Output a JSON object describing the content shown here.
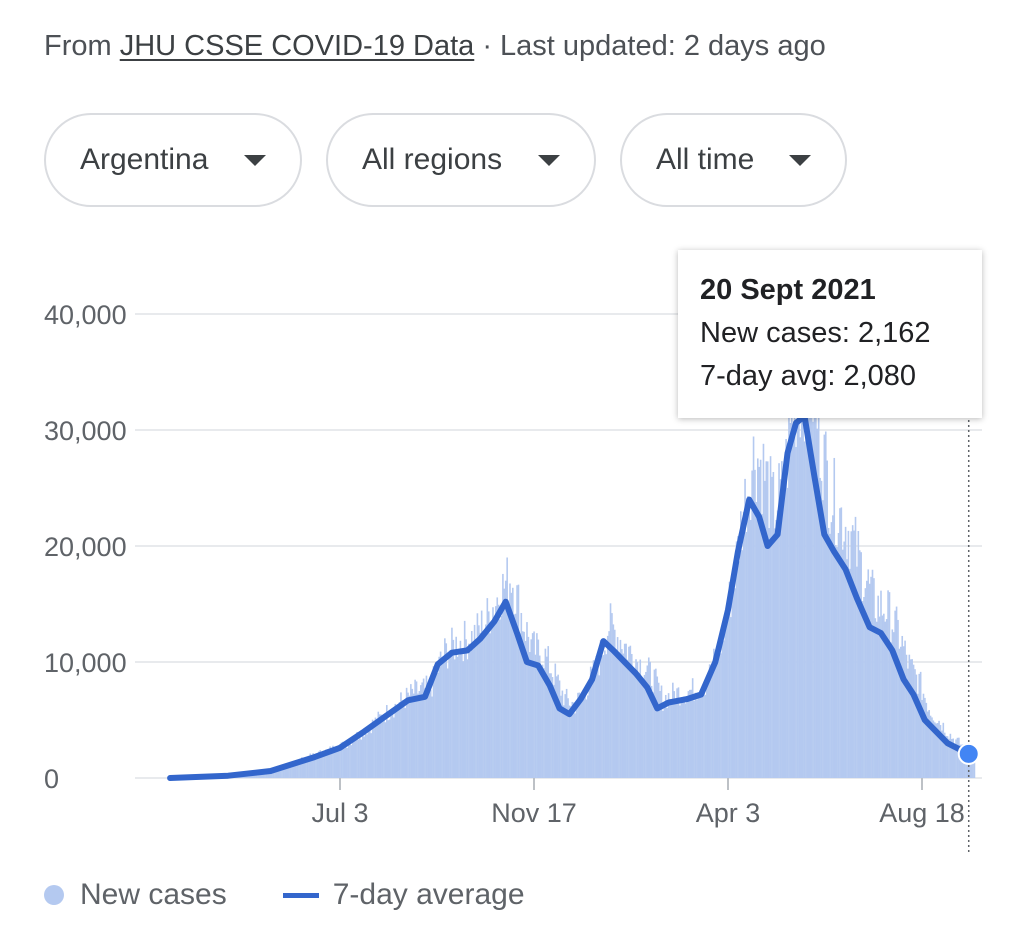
{
  "header": {
    "prefix": "From ",
    "source_link": "JHU CSSE COVID-19 Data",
    "updated": " · Last updated: 2 days ago"
  },
  "filters": {
    "country": "Argentina",
    "region": "All regions",
    "time": "All time"
  },
  "tooltip": {
    "date": "20 Sept 2021",
    "new_cases": "New cases: 2,162",
    "avg": "7-day avg: 2,080"
  },
  "legend": {
    "new_cases": "New cases",
    "avg": "7-day average"
  },
  "colors": {
    "bars": "#b4c9f0",
    "line": "#3366cc",
    "grid": "#e8eaed"
  },
  "chart_data": {
    "type": "area",
    "x_ticks": [
      "Jul 3",
      "Nov 17",
      "Apr 3",
      "Aug 18"
    ],
    "y_ticks": [
      "40,000",
      "30,000",
      "20,000",
      "10,000",
      "0"
    ],
    "ylim": [
      0,
      40000
    ],
    "series": [
      {
        "name": "7-day average",
        "points": [
          [
            "2020-03-05",
            0
          ],
          [
            "2020-04-15",
            200
          ],
          [
            "2020-05-15",
            600
          ],
          [
            "2020-06-15",
            1800
          ],
          [
            "2020-07-03",
            2600
          ],
          [
            "2020-07-20",
            4000
          ],
          [
            "2020-08-05",
            5400
          ],
          [
            "2020-08-20",
            6700
          ],
          [
            "2020-09-01",
            7000
          ],
          [
            "2020-09-10",
            9800
          ],
          [
            "2020-09-20",
            10800
          ],
          [
            "2020-10-01",
            11000
          ],
          [
            "2020-10-10",
            12000
          ],
          [
            "2020-10-20",
            13500
          ],
          [
            "2020-10-28",
            15200
          ],
          [
            "2020-11-05",
            12500
          ],
          [
            "2020-11-12",
            10000
          ],
          [
            "2020-11-20",
            9700
          ],
          [
            "2020-11-28",
            8000
          ],
          [
            "2020-12-05",
            6000
          ],
          [
            "2020-12-12",
            5500
          ],
          [
            "2020-12-20",
            6800
          ],
          [
            "2020-12-28",
            8500
          ],
          [
            "2021-01-05",
            11800
          ],
          [
            "2021-01-12",
            11000
          ],
          [
            "2021-01-20",
            10000
          ],
          [
            "2021-01-28",
            9000
          ],
          [
            "2021-02-05",
            7800
          ],
          [
            "2021-02-12",
            6000
          ],
          [
            "2021-02-20",
            6500
          ],
          [
            "2021-03-05",
            6800
          ],
          [
            "2021-03-15",
            7200
          ],
          [
            "2021-03-25",
            10000
          ],
          [
            "2021-04-03",
            14500
          ],
          [
            "2021-04-10",
            19500
          ],
          [
            "2021-04-18",
            24000
          ],
          [
            "2021-04-25",
            22500
          ],
          [
            "2021-05-01",
            20000
          ],
          [
            "2021-05-08",
            21000
          ],
          [
            "2021-05-15",
            28000
          ],
          [
            "2021-05-21",
            30600
          ],
          [
            "2021-05-27",
            31200
          ],
          [
            "2021-06-03",
            26000
          ],
          [
            "2021-06-10",
            21000
          ],
          [
            "2021-06-17",
            19500
          ],
          [
            "2021-06-25",
            18000
          ],
          [
            "2021-07-03",
            15500
          ],
          [
            "2021-07-12",
            13000
          ],
          [
            "2021-07-20",
            12500
          ],
          [
            "2021-07-28",
            11000
          ],
          [
            "2021-08-05",
            8500
          ],
          [
            "2021-08-12",
            7200
          ],
          [
            "2021-08-20",
            5000
          ],
          [
            "2021-08-28",
            4000
          ],
          [
            "2021-09-05",
            3000
          ],
          [
            "2021-09-20",
            2080
          ]
        ]
      },
      {
        "name": "New cases",
        "points": [
          [
            "2020-03-05",
            0
          ],
          [
            "2020-04-15",
            300
          ],
          [
            "2020-05-15",
            800
          ],
          [
            "2020-06-15",
            2200
          ],
          [
            "2020-07-03",
            3000
          ],
          [
            "2020-07-20",
            4600
          ],
          [
            "2020-08-05",
            6200
          ],
          [
            "2020-08-20",
            7600
          ],
          [
            "2020-09-01",
            8000
          ],
          [
            "2020-09-10",
            11000
          ],
          [
            "2020-09-20",
            12000
          ],
          [
            "2020-10-01",
            12500
          ],
          [
            "2020-10-10",
            14000
          ],
          [
            "2020-10-20",
            16500
          ],
          [
            "2020-10-28",
            18000
          ],
          [
            "2020-11-05",
            14000
          ],
          [
            "2020-11-12",
            11500
          ],
          [
            "2020-11-20",
            11000
          ],
          [
            "2020-11-28",
            9000
          ],
          [
            "2020-12-05",
            7000
          ],
          [
            "2020-12-12",
            6500
          ],
          [
            "2020-12-20",
            8000
          ],
          [
            "2020-12-28",
            10000
          ],
          [
            "2021-01-05",
            13700
          ],
          [
            "2021-01-12",
            12500
          ],
          [
            "2021-01-20",
            11200
          ],
          [
            "2021-01-28",
            10000
          ],
          [
            "2021-02-05",
            9000
          ],
          [
            "2021-02-12",
            7000
          ],
          [
            "2021-02-20",
            7500
          ],
          [
            "2021-03-05",
            7800
          ],
          [
            "2021-03-15",
            8500
          ],
          [
            "2021-03-25",
            12000
          ],
          [
            "2021-04-03",
            17500
          ],
          [
            "2021-04-10",
            24000
          ],
          [
            "2021-04-18",
            29000
          ],
          [
            "2021-04-25",
            27000
          ],
          [
            "2021-05-01",
            24000
          ],
          [
            "2021-05-08",
            25500
          ],
          [
            "2021-05-15",
            33000
          ],
          [
            "2021-05-21",
            35000
          ],
          [
            "2021-05-27",
            36000
          ],
          [
            "2021-06-03",
            30500
          ],
          [
            "2021-06-10",
            25500
          ],
          [
            "2021-06-17",
            23500
          ],
          [
            "2021-06-25",
            21500
          ],
          [
            "2021-07-03",
            18500
          ],
          [
            "2021-07-12",
            15500
          ],
          [
            "2021-07-20",
            15000
          ],
          [
            "2021-07-28",
            13000
          ],
          [
            "2021-08-05",
            10000
          ],
          [
            "2021-08-12",
            8500
          ],
          [
            "2021-08-20",
            6000
          ],
          [
            "2021-08-28",
            4800
          ],
          [
            "2021-09-05",
            3500
          ],
          [
            "2021-09-20",
            2162
          ]
        ]
      }
    ],
    "highlight": {
      "date": "2021-09-20",
      "value": 2080
    },
    "grid": true,
    "legend_position": "bottom-left"
  }
}
